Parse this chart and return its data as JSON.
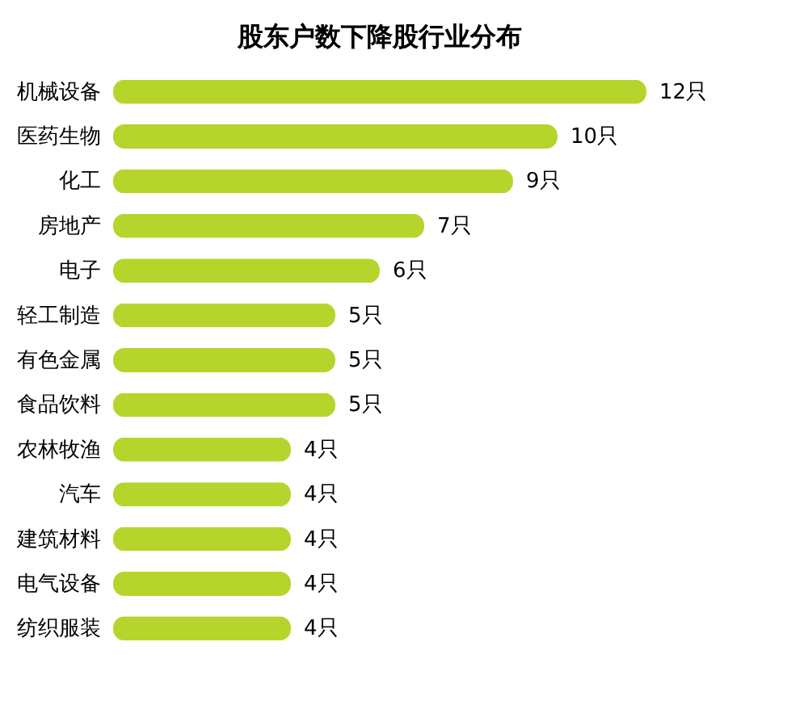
{
  "chart_data": {
    "type": "bar",
    "orientation": "horizontal",
    "title": "股东户数下降股行业分布",
    "categories": [
      "机械设备",
      "医药生物",
      "化工",
      "房地产",
      "电子",
      "轻工制造",
      "有色金属",
      "食品饮料",
      "农林牧渔",
      "汽车",
      "建筑材料",
      "电气设备",
      "纺织服装"
    ],
    "values": [
      12,
      10,
      9,
      7,
      6,
      5,
      5,
      5,
      4,
      4,
      4,
      4,
      4
    ],
    "value_labels": [
      "12只",
      "10只",
      "9只",
      "7只",
      "6只",
      "5只",
      "5只",
      "5只",
      "4只",
      "4只",
      "4只",
      "4只",
      "4只"
    ],
    "color": "#b5d52c",
    "grid": false
  }
}
